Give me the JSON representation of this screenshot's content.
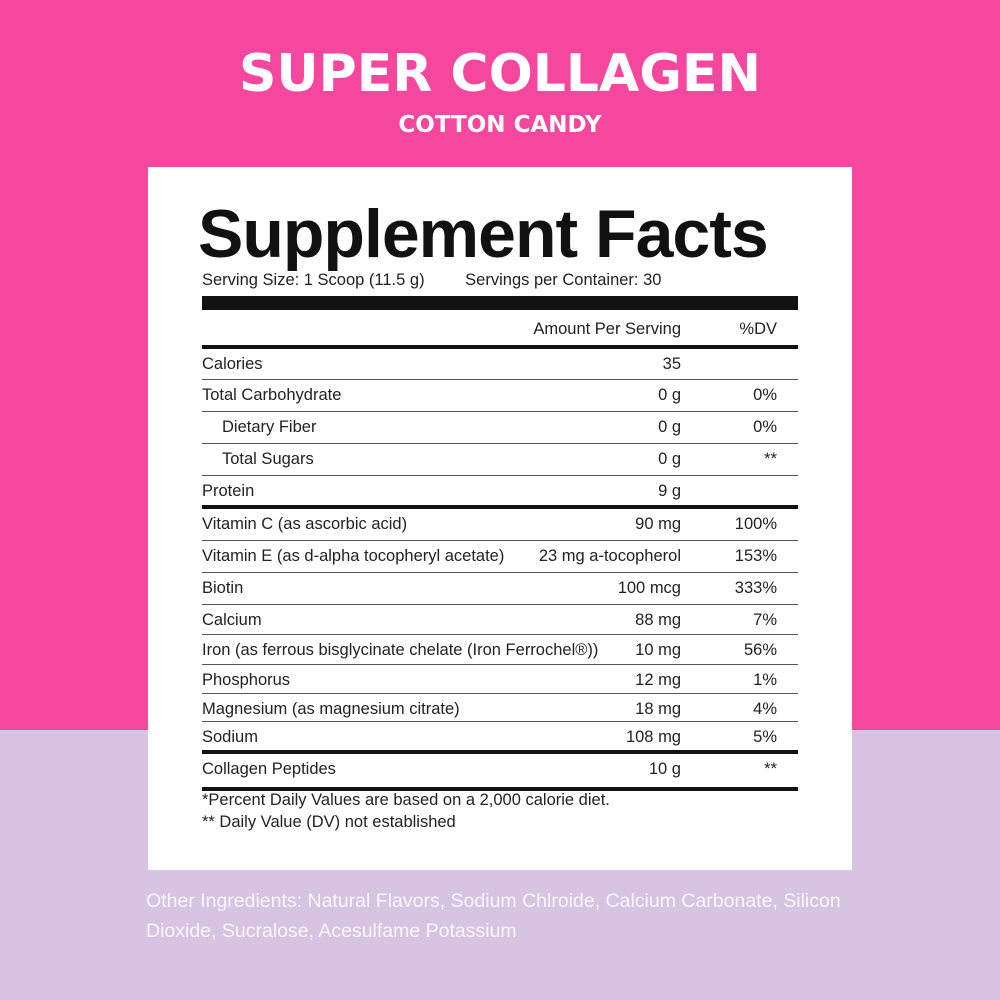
{
  "colors": {
    "top_background": "#f5479d",
    "bottom_background": "#d7c3e2",
    "card": "#ffffff"
  },
  "product": {
    "title": "SUPER COLLAGEN",
    "flavor": "COTTON CANDY"
  },
  "label": {
    "heading": "Supplement Facts",
    "serving_size": "Serving Size: 1 Scoop (11.5 g)",
    "servings_per_container": "Servings per Container: 30",
    "columns": {
      "amount": "Amount Per Serving",
      "dv": "%DV"
    },
    "rows": [
      {
        "name": "Calories",
        "amount": "35",
        "dv": ""
      },
      {
        "name": "Total Carbohydrate",
        "amount": "0 g",
        "dv": "0%"
      },
      {
        "name": "Dietary Fiber",
        "amount": "0 g",
        "dv": "0%"
      },
      {
        "name": "Total Sugars",
        "amount": "0 g",
        "dv": "**"
      },
      {
        "name": "Protein",
        "amount": "9 g",
        "dv": ""
      },
      {
        "name": "Vitamin C (as ascorbic acid)",
        "amount": "90 mg",
        "dv": "100%"
      },
      {
        "name": "Vitamin E (as d-alpha tocopheryl acetate)",
        "amount": "23 mg a-tocopherol",
        "dv": "153%"
      },
      {
        "name": "Biotin",
        "amount": "100 mcg",
        "dv": "333%"
      },
      {
        "name": "Calcium",
        "amount": "88 mg",
        "dv": "7%"
      },
      {
        "name": "Iron (as ferrous bisglycinate chelate (Iron Ferrochel®))",
        "amount": "10 mg",
        "dv": "56%"
      },
      {
        "name": "Phosphorus",
        "amount": "12 mg",
        "dv": "1%"
      },
      {
        "name": "Magnesium (as magnesium citrate)",
        "amount": "18 mg",
        "dv": "4%"
      },
      {
        "name": "Sodium",
        "amount": "108 mg",
        "dv": "5%"
      },
      {
        "name": "Collagen Peptides",
        "amount": "10 g",
        "dv": "**"
      }
    ],
    "footnote_1": "*Percent Daily Values are based on a 2,000 calorie diet.",
    "footnote_2": "** Daily Value (DV) not established"
  },
  "other_ingredients": "Other Ingredients: Natural Flavors, Sodium Chlroide, Calcium Carbonate, Silicon Dioxide, Sucralose, Acesulfame Potassium"
}
